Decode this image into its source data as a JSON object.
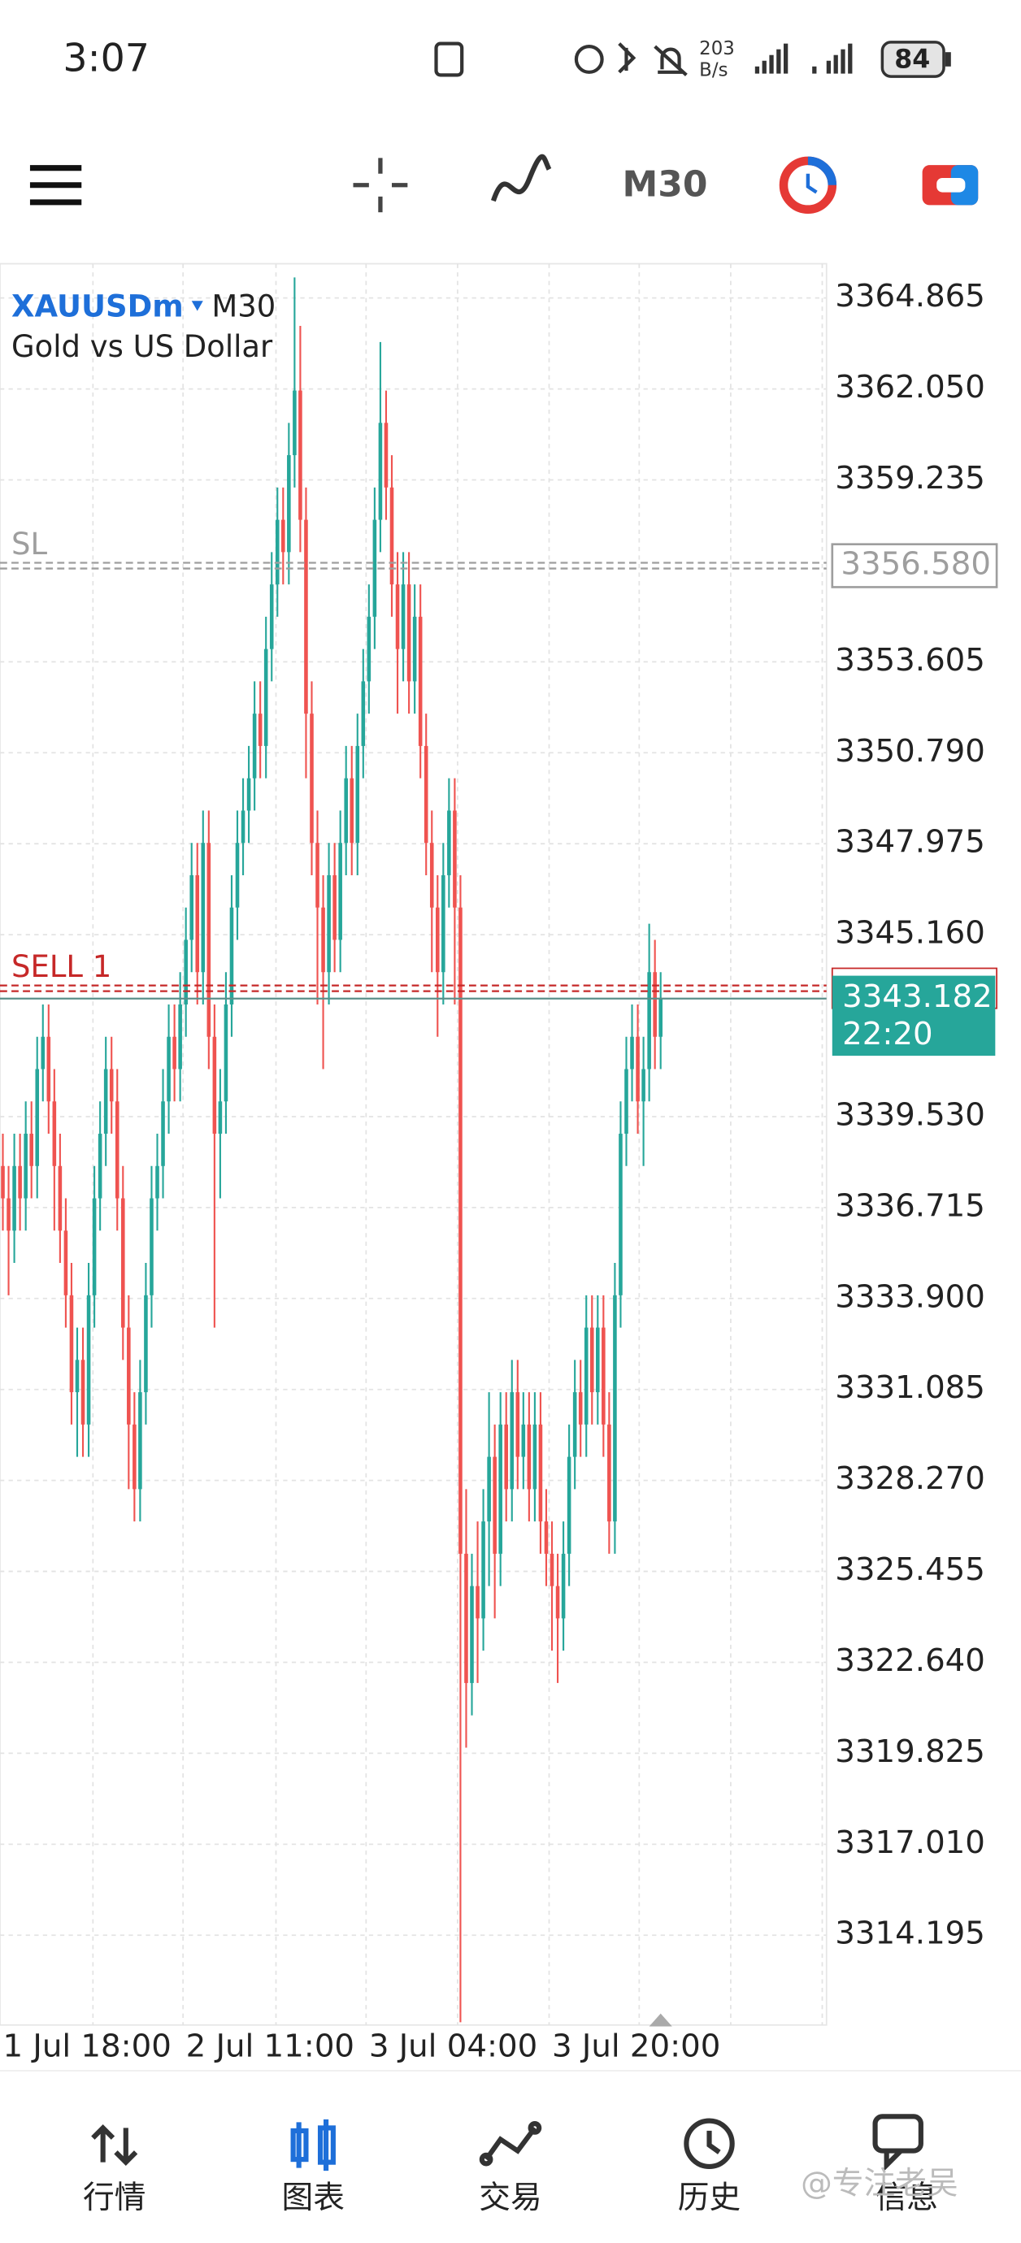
{
  "status_bar": {
    "time": "3:07",
    "net_speed_value": "203",
    "net_speed_unit": "B/s",
    "battery": "84"
  },
  "toolbar": {
    "timeframe": "M30"
  },
  "chart_data": {
    "type": "candlestick",
    "symbol": "XAUUSDm",
    "timeframe": "M30",
    "description": "Gold vs US Dollar",
    "up_color": "#26a69a",
    "down_color": "#ef5350",
    "open": [
      3338,
      3337,
      3336,
      3338,
      3337,
      3339,
      3338,
      3341,
      3342,
      3340,
      3338,
      3336,
      3334,
      3331,
      3332,
      3330,
      3334,
      3337,
      3339,
      3341,
      3340,
      3337,
      3333,
      3330,
      3328,
      3331,
      3334,
      3337,
      3338,
      3340,
      3342,
      3341,
      3343,
      3345,
      3347,
      3344,
      3348,
      3342,
      3339,
      3340,
      3343,
      3346,
      3348,
      3349,
      3350,
      3352,
      3351,
      3354,
      3356,
      3358,
      3357,
      3360,
      3362,
      3358,
      3352,
      3348,
      3346,
      3344,
      3347,
      3345,
      3348,
      3350,
      3348,
      3351,
      3353,
      3355,
      3358,
      3361,
      3359,
      3356,
      3354,
      3356,
      3353,
      3355,
      3351,
      3348,
      3346,
      3344,
      3347,
      3349,
      3346,
      3326,
      3322,
      3325,
      3324,
      3327,
      3329,
      3326,
      3330,
      3328,
      3331,
      3329,
      3330,
      3328,
      3330,
      3327,
      3326,
      3325,
      3324,
      3326,
      3329,
      3331,
      3330,
      3333,
      3331,
      3333,
      3330,
      3327,
      3334,
      3339,
      3341,
      3342,
      3340,
      3341,
      3344,
      3342
    ],
    "high": [
      3339,
      3338,
      3339,
      3339,
      3340,
      3340,
      3342,
      3343,
      3343,
      3341,
      3339,
      3337,
      3335,
      3333,
      3333,
      3335,
      3338,
      3340,
      3342,
      3342,
      3341,
      3338,
      3334,
      3331,
      3332,
      3335,
      3338,
      3339,
      3341,
      3343,
      3343,
      3344,
      3346,
      3348,
      3348,
      3349,
      3349,
      3343,
      3341,
      3344,
      3347,
      3349,
      3350,
      3351,
      3353,
      3353,
      3355,
      3357,
      3359,
      3359,
      3361,
      3365.5,
      3364,
      3359,
      3353,
      3349,
      3347,
      3348,
      3348,
      3349,
      3351,
      3351,
      3352,
      3354,
      3356,
      3359,
      3363.5,
      3362,
      3360,
      3357,
      3357,
      3357,
      3356,
      3356,
      3352,
      3349,
      3347,
      3348,
      3350,
      3350,
      3347,
      3328,
      3326,
      3327,
      3328,
      3331,
      3330,
      3331,
      3331,
      3332,
      3332,
      3331,
      3331,
      3331,
      3331,
      3328,
      3327,
      3326,
      3327,
      3330,
      3332,
      3332,
      3334,
      3334,
      3334,
      3334,
      3331,
      3335,
      3340,
      3342,
      3343,
      3343,
      3342,
      3345.5,
      3345,
      3344
    ],
    "low": [
      3336,
      3334,
      3335,
      3336,
      3336,
      3337,
      3337,
      3340,
      3339,
      3336,
      3335,
      3333,
      3330,
      3329,
      3329,
      3329,
      3333,
      3336,
      3338,
      3339,
      3336,
      3332,
      3328,
      3327,
      3327,
      3330,
      3333,
      3336,
      3337,
      3339,
      3340,
      3340,
      3342,
      3344,
      3343,
      3343,
      3341,
      3333,
      3337,
      3339,
      3342,
      3345,
      3347,
      3348,
      3349,
      3350,
      3350,
      3353,
      3355,
      3356,
      3356,
      3359,
      3357,
      3350,
      3347,
      3343,
      3341,
      3343,
      3344,
      3344,
      3347,
      3347,
      3347,
      3350,
      3352,
      3354,
      3357,
      3358,
      3355,
      3352,
      3353,
      3352,
      3352,
      3350,
      3347,
      3344,
      3342,
      3343,
      3346,
      3343,
      3311.5,
      3320,
      3321,
      3322,
      3323,
      3325,
      3324,
      3325,
      3327,
      3327,
      3328,
      3328,
      3327,
      3327,
      3326,
      3325,
      3323,
      3322,
      3323,
      3325,
      3328,
      3329,
      3329,
      3330,
      3330,
      3329,
      3326,
      3326,
      3333,
      3338,
      3340,
      3339,
      3338,
      3340,
      3341,
      3341
    ],
    "close": [
      3337,
      3336,
      3338,
      3337,
      3339,
      3338,
      3341,
      3342,
      3340,
      3338,
      3336,
      3334,
      3331,
      3332,
      3330,
      3334,
      3337,
      3339,
      3341,
      3340,
      3337,
      3333,
      3330,
      3328,
      3331,
      3334,
      3337,
      3338,
      3340,
      3342,
      3341,
      3343,
      3345,
      3347,
      3344,
      3348,
      3342,
      3339,
      3340,
      3343,
      3346,
      3348,
      3349,
      3350,
      3352,
      3351,
      3354,
      3356,
      3358,
      3357,
      3360,
      3362,
      3358,
      3352,
      3348,
      3346,
      3344,
      3347,
      3345,
      3348,
      3350,
      3348,
      3351,
      3353,
      3355,
      3358,
      3361,
      3359,
      3356,
      3354,
      3356,
      3353,
      3355,
      3351,
      3348,
      3346,
      3344,
      3347,
      3349,
      3346,
      3326,
      3322,
      3325,
      3324,
      3327,
      3329,
      3326,
      3330,
      3328,
      3331,
      3329,
      3330,
      3328,
      3330,
      3327,
      3326,
      3325,
      3324,
      3326,
      3329,
      3331,
      3330,
      3333,
      3331,
      3333,
      3330,
      3327,
      3334,
      3339,
      3341,
      3342,
      3340,
      3341,
      3344,
      3342,
      3343.182
    ],
    "xlim": [
      -0.5,
      144
    ],
    "xticks": [
      {
        "value": 0,
        "label": "1 Jul 18:00"
      },
      {
        "value": 32,
        "label": "2 Jul 11:00"
      },
      {
        "value": 64,
        "label": "3 Jul 04:00"
      },
      {
        "value": 96,
        "label": "3 Jul 20:00"
      }
    ],
    "ylim": [
      3311.46,
      3365.88
    ],
    "yticks": [
      3364.865,
      {
        "value": 3362.05,
        "label": "3362.050"
      },
      3359.235,
      3353.605,
      {
        "value": 3350.79,
        "label": "3350.790"
      },
      3347.975,
      {
        "value": 3345.16,
        "label": "3345.160"
      },
      {
        "value": 3339.53,
        "label": "3339.530"
      },
      3336.715,
      {
        "value": 3333.9,
        "label": "3333.900"
      },
      3331.085,
      {
        "value": 3328.27,
        "label": "3328.270"
      },
      3325.455,
      {
        "value": 3322.64,
        "label": "3322.640"
      },
      3319.825,
      {
        "value": 3317.01,
        "label": "3317.010"
      },
      3314.195
    ],
    "grid": true,
    "lines": [
      {
        "name": "SL",
        "value": 3356.58,
        "label": "3356.580",
        "color": "#9e9e9e"
      },
      {
        "name": "SELL 1",
        "value": 3343.5,
        "color": "#c62828"
      },
      {
        "value": 3343.182,
        "label": "3343.182",
        "time": "22:20",
        "color": "#26a69a"
      }
    ]
  },
  "nav": {
    "items": [
      "行情",
      "图表",
      "交易",
      "历史",
      "信息"
    ],
    "active": 1,
    "active_color": "#1e6fd9"
  },
  "watermark": "@专注老吴"
}
